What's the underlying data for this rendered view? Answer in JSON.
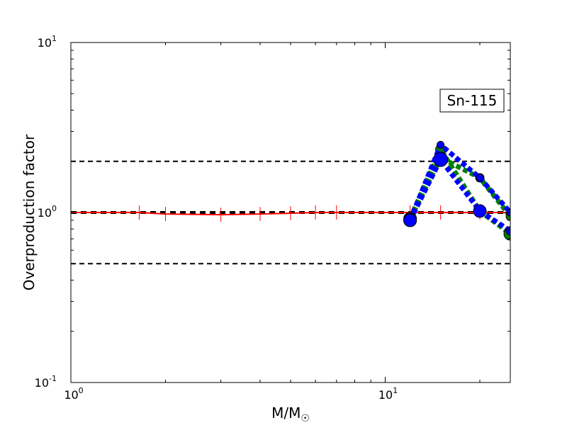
{
  "chart_data": {
    "type": "line",
    "xlabel": "M/M",
    "xlabel_symbol": "☉",
    "ylabel": "Overproduction factor",
    "x_scale": "log",
    "y_scale": "log",
    "xlim": [
      1,
      25
    ],
    "ylim": [
      0.1,
      10
    ],
    "x_ticks": [
      {
        "value": 1,
        "base": "10",
        "exp": "0"
      },
      {
        "value": 10,
        "base": "10",
        "exp": "1"
      }
    ],
    "y_ticks": [
      {
        "value": 0.1,
        "base": "10",
        "exp": "-1"
      },
      {
        "value": 1,
        "base": "10",
        "exp": "0"
      },
      {
        "value": 10,
        "base": "10",
        "exp": "1"
      }
    ],
    "annotation": "Sn-115",
    "reference_lines": [
      {
        "y": 2.0,
        "style": "dashed",
        "color": "#000000"
      },
      {
        "y": 1.0,
        "style": "dashed",
        "color": "#000000"
      },
      {
        "y": 0.5,
        "style": "dashed",
        "color": "#000000"
      }
    ],
    "series": [
      {
        "color": "#ff0000",
        "style": "solid",
        "marker": "vline",
        "x": [
          1,
          1.65,
          2,
          3,
          4,
          5,
          6,
          7,
          12,
          15,
          20,
          25
        ],
        "y": [
          1.0,
          1.0,
          0.98,
          0.97,
          0.98,
          0.99,
          1.0,
          1.0,
          1.0,
          1.0,
          1.0,
          1.0
        ]
      },
      {
        "color": "#008000",
        "style": "dotted",
        "marker": "circle",
        "points": [
          {
            "x": 12,
            "y": 0.92,
            "r": 9
          },
          {
            "x": 15,
            "y": 2.35,
            "r": 7
          },
          {
            "x": 20,
            "y": 1.02,
            "r": 7
          },
          {
            "x": 25,
            "y": 0.75,
            "r": 9
          }
        ]
      },
      {
        "color": "#008000",
        "style": "dotted",
        "marker": "circle",
        "points": [
          {
            "x": 12,
            "y": 0.92,
            "r": 8
          },
          {
            "x": 15,
            "y": 2.1,
            "r": 8
          },
          {
            "x": 20,
            "y": 1.6,
            "r": 6
          },
          {
            "x": 25,
            "y": 0.95,
            "r": 6
          }
        ]
      },
      {
        "color": "#0000ff",
        "style": "dotted",
        "marker": "circle",
        "points": [
          {
            "x": 12,
            "y": 0.9,
            "r": 9
          },
          {
            "x": 15,
            "y": 2.5,
            "r": 5
          },
          {
            "x": 20,
            "y": 1.6,
            "r": 5
          },
          {
            "x": 25,
            "y": 1.0,
            "r": 5
          }
        ]
      },
      {
        "color": "#0000ff",
        "style": "dotted",
        "marker": "circle",
        "points": [
          {
            "x": 12,
            "y": 0.9,
            "r": 9
          },
          {
            "x": 15,
            "y": 2.05,
            "r": 10
          },
          {
            "x": 20,
            "y": 1.02,
            "r": 9
          },
          {
            "x": 25,
            "y": 0.78,
            "r": 6
          }
        ]
      }
    ]
  }
}
